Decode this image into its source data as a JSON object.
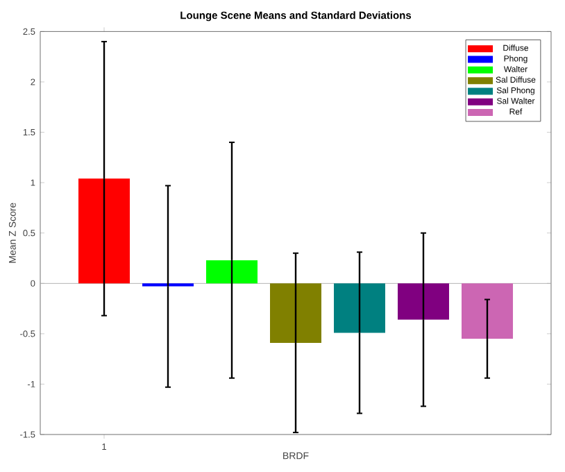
{
  "chart_data": {
    "type": "bar",
    "title": "Lounge Scene Means and Standard Deviations",
    "xlabel": "BRDF",
    "ylabel": "Mean Z Score",
    "categories": [
      "1",
      null,
      null,
      null,
      null,
      null,
      null
    ],
    "series": [
      {
        "name": "Diffuse",
        "color": "#ff0000",
        "values": [
          1.04,
          null,
          null,
          null,
          null,
          null,
          null
        ],
        "errors": [
          1.36,
          null,
          null,
          null,
          null,
          null,
          null
        ]
      },
      {
        "name": "Phong",
        "color": "#0000ff",
        "values": [
          null,
          -0.03,
          null,
          null,
          null,
          null,
          null
        ],
        "errors": [
          null,
          1.0,
          null,
          null,
          null,
          null,
          null
        ]
      },
      {
        "name": "Walter",
        "color": "#00ff00",
        "values": [
          null,
          null,
          0.23,
          null,
          null,
          null,
          null
        ],
        "errors": [
          null,
          null,
          1.17,
          null,
          null,
          null,
          null
        ]
      },
      {
        "name": "Sal Diffuse",
        "color": "#808000",
        "values": [
          null,
          null,
          null,
          -0.59,
          null,
          null,
          null
        ],
        "errors": [
          null,
          null,
          null,
          0.89,
          null,
          null,
          null
        ]
      },
      {
        "name": "Sal Phong",
        "color": "#008080",
        "values": [
          null,
          null,
          null,
          null,
          -0.49,
          null,
          null
        ],
        "errors": [
          null,
          null,
          null,
          null,
          0.8,
          null,
          null
        ]
      },
      {
        "name": "Sal Walter",
        "color": "#800080",
        "values": [
          null,
          null,
          null,
          null,
          null,
          -0.36,
          null
        ],
        "errors": [
          null,
          null,
          null,
          null,
          null,
          0.86,
          null
        ]
      },
      {
        "name": "Ref",
        "color": "#cc66b3",
        "values": [
          null,
          null,
          null,
          null,
          null,
          null,
          -0.55
        ],
        "errors": [
          null,
          null,
          null,
          null,
          null,
          null,
          0.39
        ]
      }
    ],
    "ylim": [
      -1.5,
      2.5
    ],
    "yticks": [
      -1.5,
      -1,
      -0.5,
      0,
      0.5,
      1,
      1.5,
      2,
      2.5
    ],
    "ref_lines": [
      {
        "axis": "y",
        "value": 0,
        "color": "#aaaaaa"
      }
    ],
    "legend": "top right"
  }
}
